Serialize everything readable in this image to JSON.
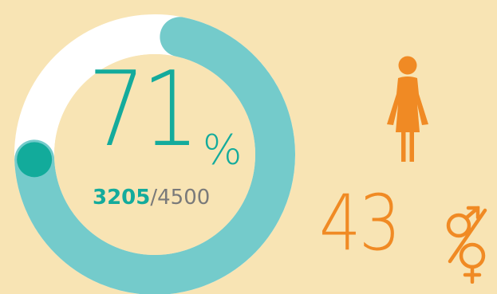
{
  "chart_data": {
    "type": "pie",
    "title": "",
    "percent": 71,
    "percent_label": "71",
    "percent_symbol": "%",
    "count_value": "3205",
    "count_total": "/4500",
    "values": [
      3205,
      1295
    ],
    "colors": {
      "filled": "#74cbcb",
      "remaining": "#ffffff",
      "marker": "#12ab9b",
      "inner_text": "#14ab9c",
      "background": "#f8e4b4"
    }
  },
  "female_stat": {
    "value": "43",
    "icon": "female-figure-icon",
    "symbol_icon": "gender-percent-icon",
    "color": "#f08a24"
  }
}
